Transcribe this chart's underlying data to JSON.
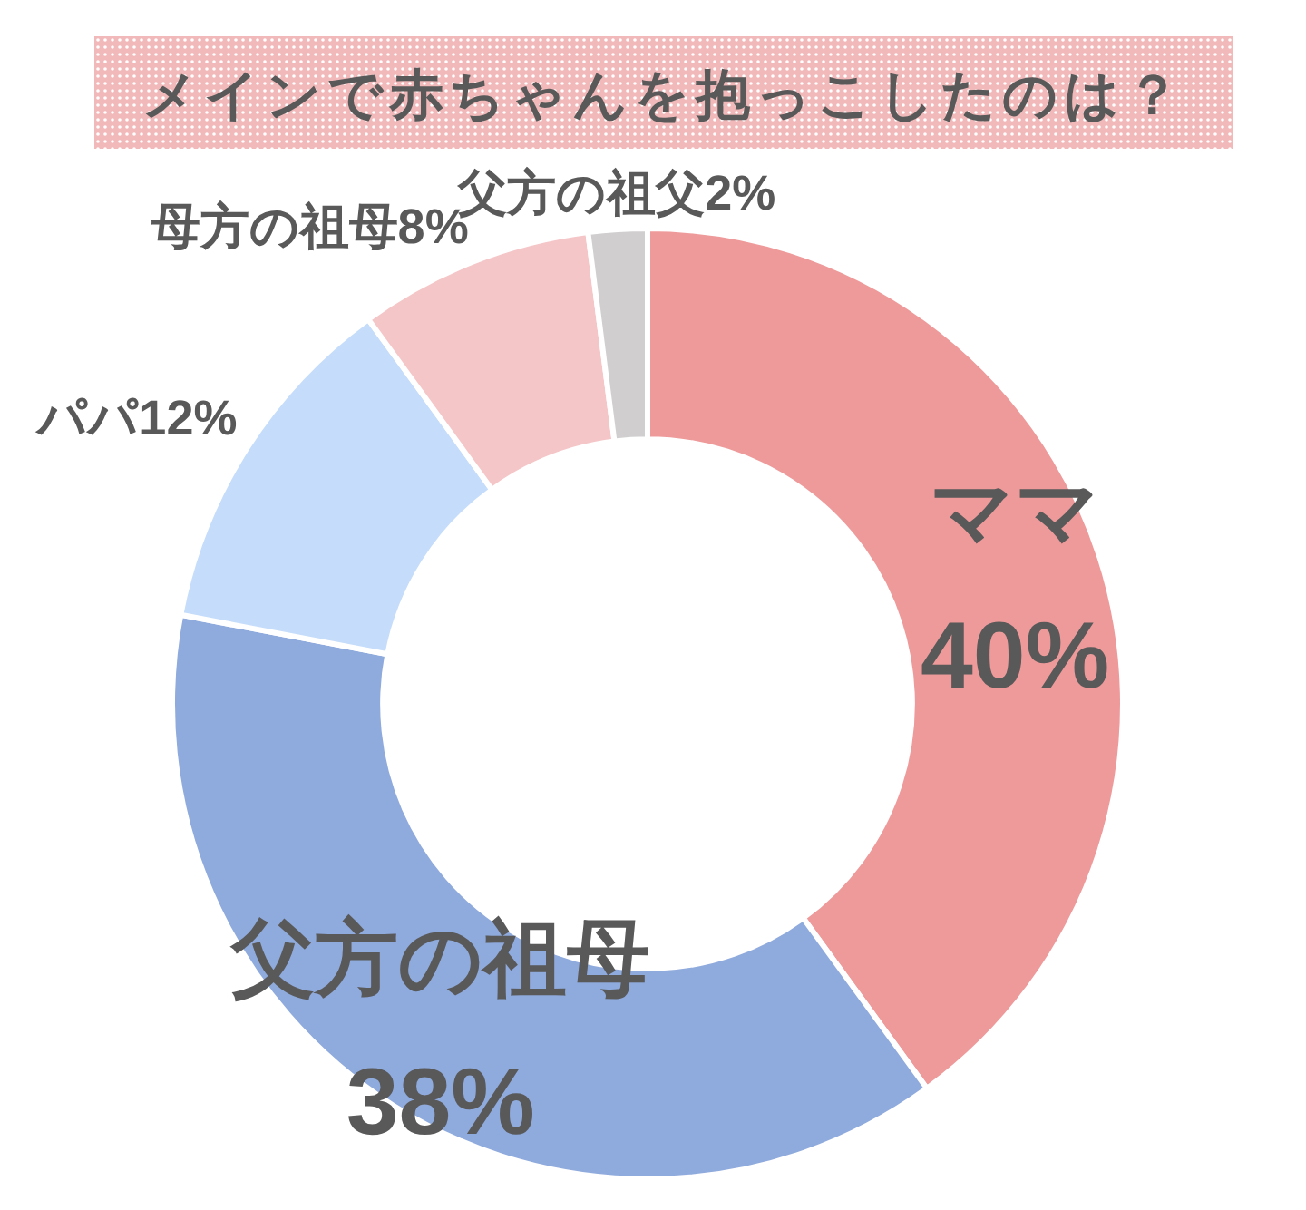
{
  "chart_data": {
    "type": "donut",
    "title": "メインで赤ちゃんを抱っこしたのは？",
    "categories": [
      "ママ",
      "父方の祖母",
      "パパ",
      "母方の祖母",
      "父方の祖父"
    ],
    "values": [
      40,
      38,
      12,
      8,
      2
    ],
    "colors": [
      "#ef9a9a",
      "#8faadc",
      "#c5ddfa",
      "#f5c6c8",
      "#d0cece"
    ],
    "value_labels": [
      "40%",
      "38%",
      "12%",
      "8%",
      "2%"
    ]
  }
}
